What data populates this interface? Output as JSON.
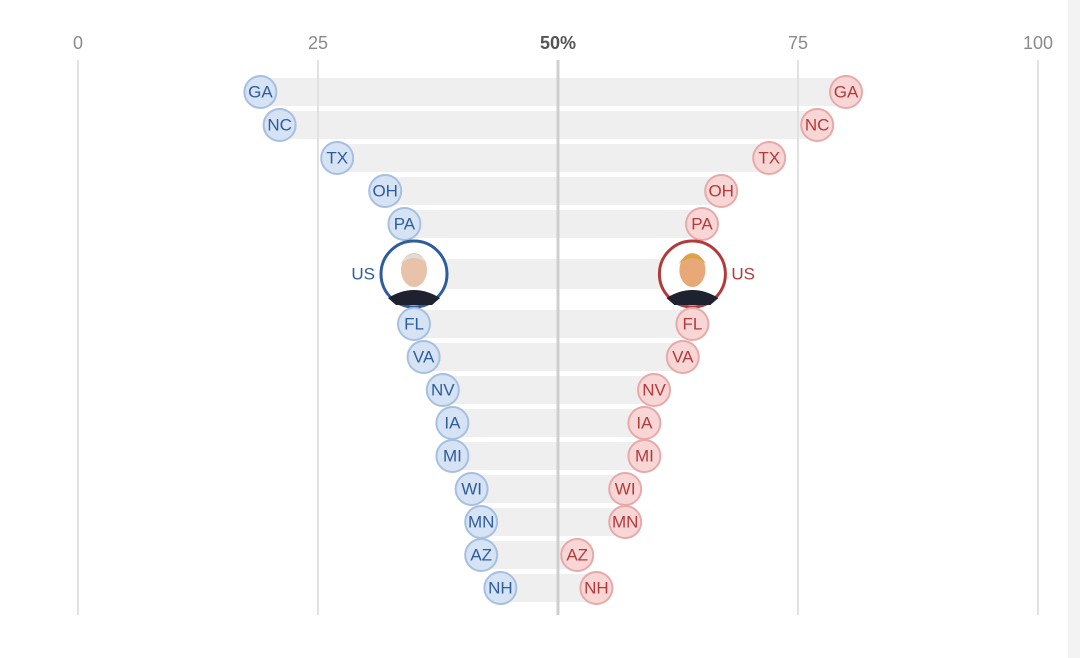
{
  "chart_data": {
    "type": "dot",
    "categories": [
      "GA",
      "NC",
      "TX",
      "OH",
      "PA",
      "US",
      "FL",
      "VA",
      "NV",
      "IA",
      "MI",
      "WI",
      "MN",
      "AZ",
      "NH"
    ],
    "highlight": "US",
    "series": [
      {
        "color": "#2f5d9b",
        "values": [
          19,
          21,
          27,
          32,
          34,
          35,
          35,
          36,
          38,
          39,
          39,
          41,
          42,
          42,
          44
        ]
      },
      {
        "color": "#b23a3a",
        "values": [
          80,
          77,
          72,
          67,
          65,
          64,
          64,
          63,
          60,
          59,
          59,
          57,
          57,
          52,
          54
        ]
      }
    ],
    "xlim": [
      0,
      100
    ],
    "xticks": [
      0,
      25,
      {
        "value": 50,
        "label": "50%"
      },
      75,
      100
    ],
    "grid": true
  }
}
